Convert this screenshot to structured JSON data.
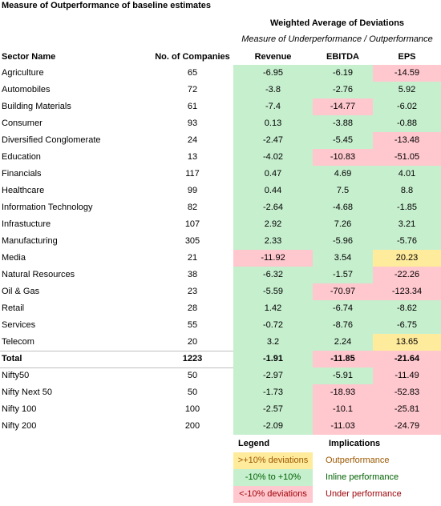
{
  "title": "Measure of Outperformance of baseline estimates",
  "group_header": "Weighted Average of Deviations",
  "subheader": "Measure of Underperformance / Outperformance",
  "columns": [
    "Sector Name",
    "No. of Companies",
    "Revenue",
    "EBITDA",
    "EPS"
  ],
  "sectors": [
    [
      "Agriculture",
      65,
      -6.95,
      -6.19,
      -14.59
    ],
    [
      "Automobiles",
      72,
      -3.8,
      -2.76,
      5.92
    ],
    [
      "Building Materials",
      61,
      -7.4,
      -14.77,
      -6.02
    ],
    [
      "Consumer",
      93,
      0.13,
      -3.88,
      -0.88
    ],
    [
      "Diversified Conglomerate",
      24,
      -2.47,
      -5.45,
      -13.48
    ],
    [
      "Education",
      13,
      -4.02,
      -10.83,
      -51.05
    ],
    [
      "Financials",
      117,
      0.47,
      4.69,
      4.01
    ],
    [
      "Healthcare",
      99,
      0.44,
      7.5,
      8.8
    ],
    [
      "Information Technology",
      82,
      -2.64,
      -4.68,
      -1.85
    ],
    [
      "Infrastucture",
      107,
      2.92,
      7.26,
      3.21
    ],
    [
      "Manufacturing",
      305,
      2.33,
      -5.96,
      -5.76
    ],
    [
      "Media",
      21,
      -11.92,
      3.54,
      20.23
    ],
    [
      "Natural Resources",
      38,
      -6.32,
      -1.57,
      -22.26
    ],
    [
      "Oil & Gas",
      23,
      -5.59,
      -70.97,
      -123.34
    ],
    [
      "Retail",
      28,
      1.42,
      -6.74,
      -8.62
    ],
    [
      "Services",
      55,
      -0.72,
      -8.76,
      -6.75
    ],
    [
      "Telecom",
      20,
      3.2,
      2.24,
      13.65
    ]
  ],
  "total": [
    "Total",
    1223,
    -1.91,
    -11.85,
    -21.64
  ],
  "indices": [
    [
      "Nifty50",
      50,
      -2.97,
      -5.91,
      -11.49
    ],
    [
      "Nifty Next 50",
      50,
      -1.73,
      -18.93,
      -52.83
    ],
    [
      "Nifty 100",
      100,
      -2.57,
      -10.1,
      -25.81
    ],
    [
      "Nifty 200",
      200,
      -2.09,
      -11.03,
      -24.79
    ]
  ],
  "legend": {
    "title": "Legend",
    "implications_title": "Implications",
    "items": [
      {
        "label": ">+10% deviations",
        "meaning": "Outperformance",
        "color": "#ffeb9c",
        "text_color": "#9c5700"
      },
      {
        "label": "-10% to +10%",
        "meaning": "Inline performance",
        "color": "#c6efce",
        "text_color": "#006100"
      },
      {
        "label": "<-10% deviations",
        "meaning": "Under performance",
        "color": "#ffc7ce",
        "text_color": "#9c0006"
      }
    ]
  }
}
